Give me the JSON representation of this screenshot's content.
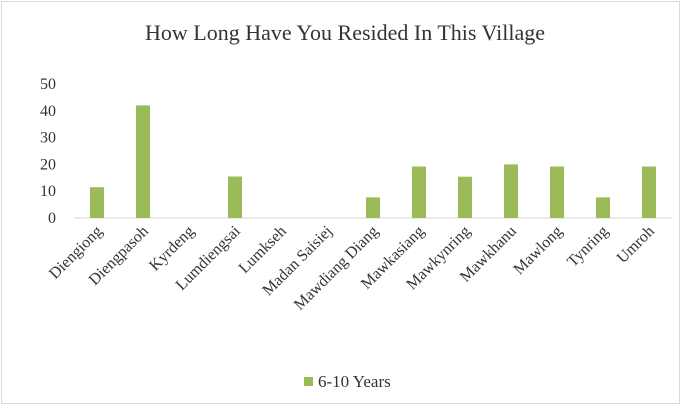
{
  "chart_data": {
    "type": "bar",
    "title": "How Long Have You Resided In This Village",
    "categories": [
      "Diengiong",
      "Diengpasoh",
      "Kyrdeng",
      "Lumdiengsai",
      "Lumkseh",
      "Madan Saisiej",
      "Mawdiang Diang",
      "Mawkasiang",
      "Mawkynring",
      "Mawkhanu",
      "Mawlong",
      "Tynring",
      "Umroh"
    ],
    "series": [
      {
        "name": "6-10 Years",
        "values": [
          11.5,
          42,
          0,
          15.5,
          0,
          0,
          7.7,
          19.2,
          15.4,
          20,
          19.2,
          7.7,
          19.2
        ]
      }
    ],
    "ylim": [
      0,
      50
    ],
    "yticks": [
      0,
      10,
      20,
      30,
      40,
      50
    ],
    "grid": false,
    "legend": "bottom",
    "colors": {
      "bar": "#9bbb59",
      "axis": "#d9d9d9",
      "text": "#333333"
    }
  }
}
